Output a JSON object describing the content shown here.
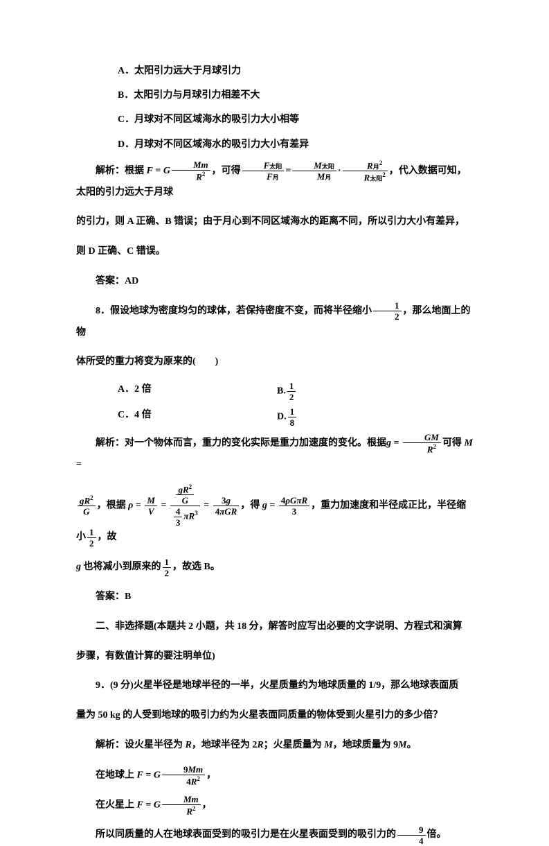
{
  "options_q7": {
    "a": "A．太阳引力远大于月球引力",
    "b": "B．太阳引力与月球引力相差不大",
    "c": "C．月球对不同区域海水的吸引力大小相等",
    "d": "D．月球对不同区域海水的吸引力大小有差异"
  },
  "explain_q7_prefix": "解析：根据 ",
  "explain_q7_mid": "，可得",
  "explain_q7_mid2": "，代入数据可知，太阳的引力远大于月球",
  "explain_q7_line2": "的引力，则 A 正确、B 错误；由于月心到不同区域海水的距离不同，所以引力大小有差异，",
  "explain_q7_line3": "则 D 正确、C 错误。",
  "answer_q7": "答案：AD",
  "q8_text1": "8．假设地球为密度均匀的球体，若保持密度不变，而将半径缩小",
  "q8_text2": "，那么地面上的物",
  "q8_line2": "体所受的重力将变为原来的(　　)",
  "q8_opts": {
    "a": "A．2 倍",
    "b": "B.",
    "c": "C．4 倍",
    "d": "D."
  },
  "explain_q8_p1_prefix": "解析：对一个物体而言，重力的变化实际是重力加速度的变化。根据",
  "explain_q8_p1_suffix": "可得",
  "explain_q8_p2_a": "，根据",
  "explain_q8_p2_b": "，得",
  "explain_q8_p2_c": "，重力加速度和半径成正比，半径缩小",
  "explain_q8_p2_d": "，故",
  "explain_q8_p3_a": " 也将减小到原来的",
  "explain_q8_p3_b": "，故选 B。",
  "answer_q8": "答案：B",
  "section2_a": "二、非选择题(本题共 2 小题，共 18 分，解答时应写出必要的文字说明、方程式和演算",
  "section2_b": "步骤，有数值计算的要注明单位)",
  "q9_text1": "9．(9 分)火星半径是地球半径的一半，火星质量约为地球质量的 1/9，那么地球表面质",
  "q9_text2": "量为 50 kg 的人受到地球的吸引力约为火星表面同质量的物体受到火星引力的多少倍？",
  "explain_q9_p1_prefix": "解析：设火星半径为 ",
  "explain_q9_p1_mid": "，地球半径为 2",
  "explain_q9_p1_mid2": "；火星质量为 ",
  "explain_q9_p1_mid3": "，地球质量为 9",
  "explain_q9_p1_end": "。",
  "explain_q9_earth_prefix": "在地球上 ",
  "explain_q9_mars_prefix": "在火星上 ",
  "explain_q9_conclusion_a": "所以同质量的人在地球表面受到的吸引力是在火星表面受到的吸引力的",
  "explain_q9_conclusion_b": "倍。",
  "colors": {
    "text": "#000000",
    "background": "#ffffff"
  },
  "font": {
    "size_body": 14,
    "weight": "bold",
    "family": "SimSun"
  }
}
